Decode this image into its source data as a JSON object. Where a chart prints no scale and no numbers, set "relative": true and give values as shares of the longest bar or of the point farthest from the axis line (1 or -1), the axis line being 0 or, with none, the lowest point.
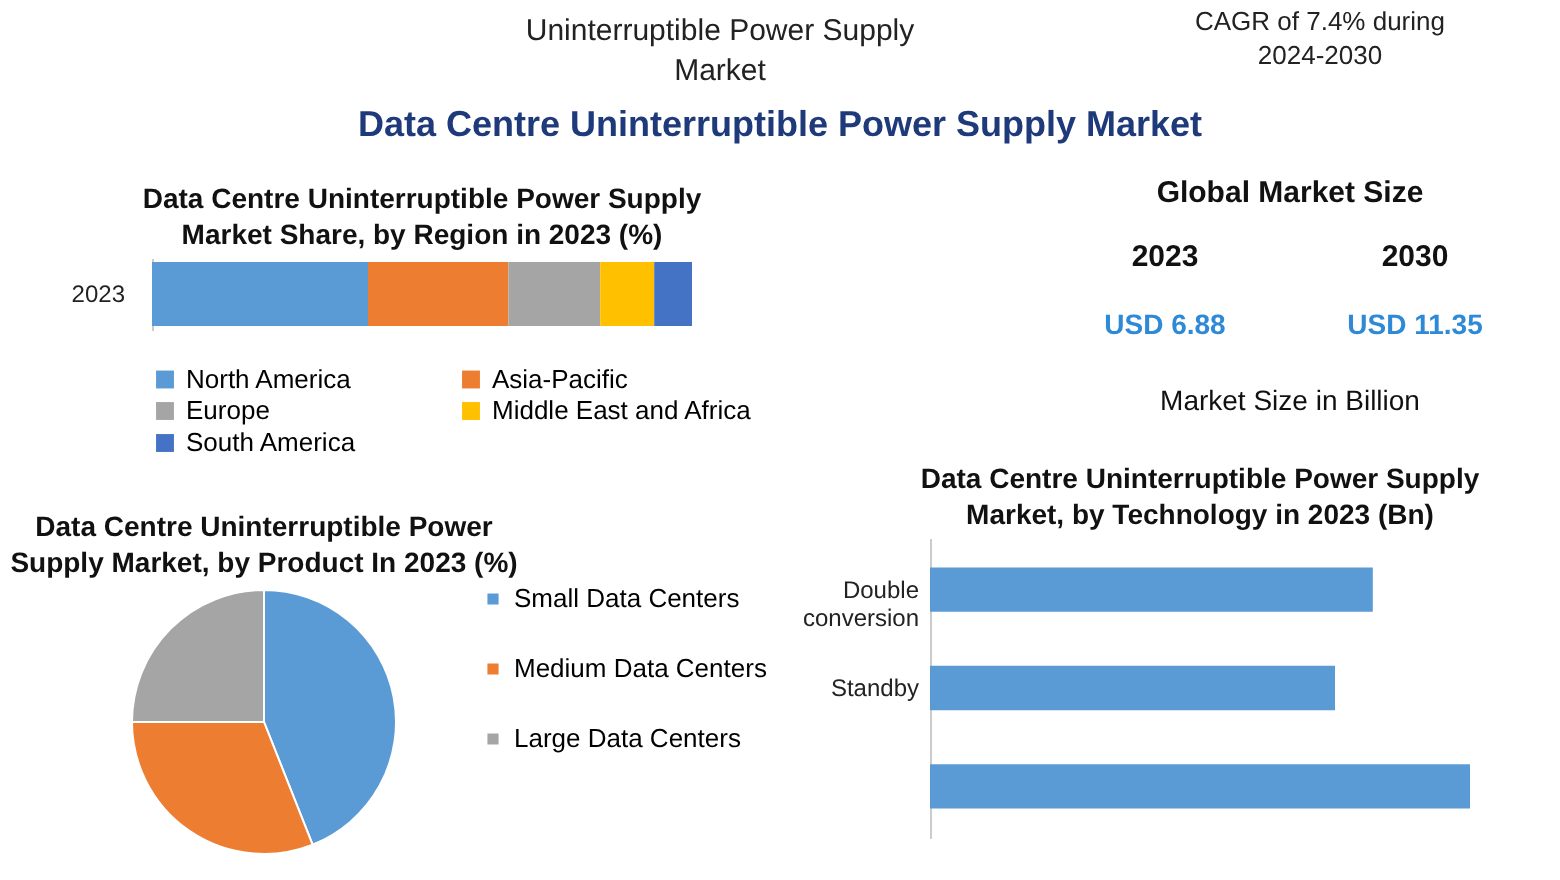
{
  "chart_data": [
    {
      "type": "other",
      "title": "Data Centre Uninterruptible Power Supply Market",
      "annotations": [
        "Uninterruptible Power Supply Market",
        "CAGR of 7.4% during 2024-2030"
      ]
    },
    {
      "type": "bar",
      "title": "Data Centre Uninterruptible Power Supply Market Share, by Region in 2023 (%)",
      "orientation": "horizontal",
      "stacked": true,
      "relative": true,
      "categories": [
        "2023"
      ],
      "legend": "bottom",
      "series": [
        {
          "name": "North America",
          "color": "#5b9bd5",
          "values": [
            0.4
          ]
        },
        {
          "name": "Asia-Pacific",
          "color": "#ed7d31",
          "values": [
            0.26
          ]
        },
        {
          "name": "Europe",
          "color": "#a5a5a5",
          "values": [
            0.17
          ]
        },
        {
          "name": "Middle East and Africa",
          "color": "#ffc000",
          "values": [
            0.1
          ]
        },
        {
          "name": "South America",
          "color": "#4472c4",
          "values": [
            0.07
          ]
        }
      ]
    },
    {
      "type": "other",
      "title": "Global Market Size",
      "annotations": [
        "2023",
        "2030",
        "USD 6.88",
        "USD 11.35",
        "Market Size in Billion"
      ]
    },
    {
      "type": "pie",
      "title": "Data Centre Uninterruptible Power Supply Market, by Product In 2023 (%)",
      "categories": [
        "Small Data Centers",
        "Medium Data Centers",
        "Large Data Centers"
      ],
      "values": [
        44,
        31,
        25
      ],
      "colors": [
        "#5b9bd5",
        "#ed7d31",
        "#a5a5a5"
      ],
      "legend": "right"
    },
    {
      "type": "bar",
      "title": "Data Centre Uninterruptible Power Supply Market, by Technology in 2023 (Bn)",
      "orientation": "horizontal",
      "relative": true,
      "categories": [
        "Double conversion",
        "Standby",
        null
      ],
      "values": [
        0.82,
        0.75,
        1
      ],
      "color": "#5b9bd5"
    }
  ]
}
